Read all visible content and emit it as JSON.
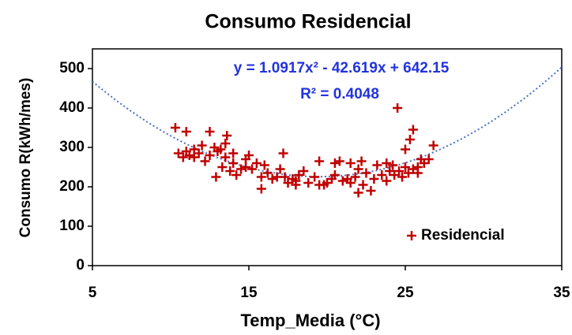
{
  "chart_data": {
    "type": "scatter",
    "title": "Consumo Residencial",
    "x_label": "Temp_Media (°C)",
    "y_label": "Consumo R(kWh/mes)",
    "annotations": [
      "y = 1.0917x² - 42.619x + 642.15",
      "R² = 0.4048"
    ],
    "xlim": [
      5,
      35
    ],
    "xticks": [
      5,
      15,
      25,
      35
    ],
    "ylim": [
      0,
      550
    ],
    "yticks": [
      0,
      100,
      200,
      300,
      400,
      500
    ],
    "legend": "lower right",
    "trendline": "polynomial",
    "series": [
      {
        "name": "Residencial",
        "color": "#c00000",
        "x": [
          10.3,
          10.5,
          10.8,
          11,
          11,
          11.2,
          11.5,
          11.8,
          12,
          12.2,
          12.5,
          12.5,
          12.8,
          12.9,
          13,
          13.2,
          13.3,
          13.5,
          13.5,
          13.6,
          13.8,
          14,
          14,
          14.2,
          14.5,
          14.8,
          15,
          15.2,
          15.5,
          15.8,
          15.8,
          16,
          16.2,
          16.5,
          17,
          17.2,
          17.3,
          17.5,
          17.8,
          18,
          18.2,
          18.5,
          18.8,
          19.2,
          19.5,
          19.8,
          20,
          20.3,
          20.5,
          20.8,
          21,
          21.3,
          21.5,
          21.8,
          22,
          22,
          22.2,
          22.3,
          22.5,
          22.8,
          23,
          23.2,
          23.5,
          23.8,
          24,
          24.2,
          24.3,
          24.5,
          24.6,
          24.8,
          25,
          25,
          25.2,
          25.3,
          25.5,
          25.5,
          25.8,
          26,
          26.2,
          26.5,
          26.8,
          20.5,
          18,
          16.8,
          14.8,
          23.8,
          21.5,
          19.5,
          25.8,
          11.5
        ],
        "values": [
          350,
          285,
          275,
          340,
          290,
          280,
          295,
          285,
          305,
          265,
          340,
          280,
          300,
          225,
          290,
          295,
          250,
          310,
          275,
          330,
          240,
          285,
          260,
          230,
          245,
          270,
          280,
          245,
          260,
          225,
          195,
          255,
          235,
          220,
          245,
          285,
          225,
          210,
          220,
          215,
          230,
          240,
          210,
          225,
          265,
          205,
          210,
          220,
          230,
          265,
          215,
          220,
          260,
          225,
          185,
          245,
          265,
          205,
          235,
          190,
          220,
          255,
          230,
          260,
          240,
          255,
          230,
          400,
          240,
          225,
          250,
          295,
          235,
          320,
          345,
          245,
          250,
          270,
          260,
          270,
          305,
          260,
          205,
          225,
          250,
          215,
          210,
          205,
          235,
          275
        ]
      }
    ]
  }
}
